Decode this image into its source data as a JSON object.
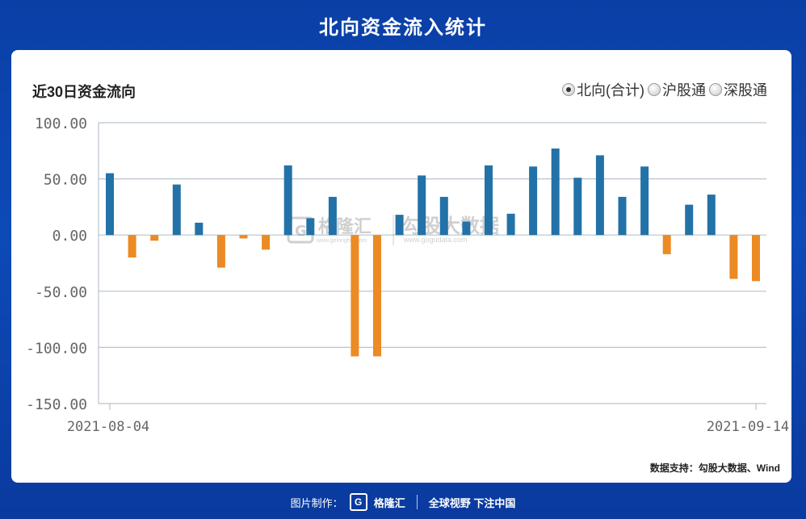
{
  "page": {
    "title": "北向资金流入统计"
  },
  "chart_header": {
    "title": "近30日资金流向",
    "options": [
      {
        "label": "北向(合计)",
        "checked": true
      },
      {
        "label": "沪股通",
        "checked": false
      },
      {
        "label": "深股通",
        "checked": false
      }
    ]
  },
  "watermark": {
    "left_text": "格隆汇",
    "left_sub": "www.gelonghui.com",
    "right_text": "勾股大数据",
    "right_sub": "www.gogudata.com"
  },
  "source": "数据支持：勾股大数据、Wind",
  "footer": {
    "prefix": "图片制作：",
    "logo_glyph": "G",
    "brand": "格隆汇",
    "slogan": "全球视野 下注中国"
  },
  "colors": {
    "positive": "#2272a8",
    "negative": "#ec8a24",
    "grid": "#b9c3cc",
    "axis_text": "#666666"
  },
  "chart_data": {
    "type": "bar",
    "ylim": [
      -150,
      100
    ],
    "yticks": [
      100,
      50,
      0,
      -50,
      -100,
      -150
    ],
    "ytick_labels": [
      "100.00",
      "50.00",
      "0.00",
      "-50.00",
      "-100.00",
      "-150.00"
    ],
    "x_first_label": "2021-08-04",
    "x_last_label": "2021-09-14",
    "grid": true,
    "values": [
      55,
      -20,
      -5,
      45,
      11,
      -29,
      -3,
      -13,
      62,
      15,
      34,
      -108,
      -108,
      18,
      53,
      34,
      12,
      62,
      19,
      61,
      77,
      51,
      71,
      34,
      61,
      -17,
      27,
      36,
      -39,
      -41
    ]
  }
}
